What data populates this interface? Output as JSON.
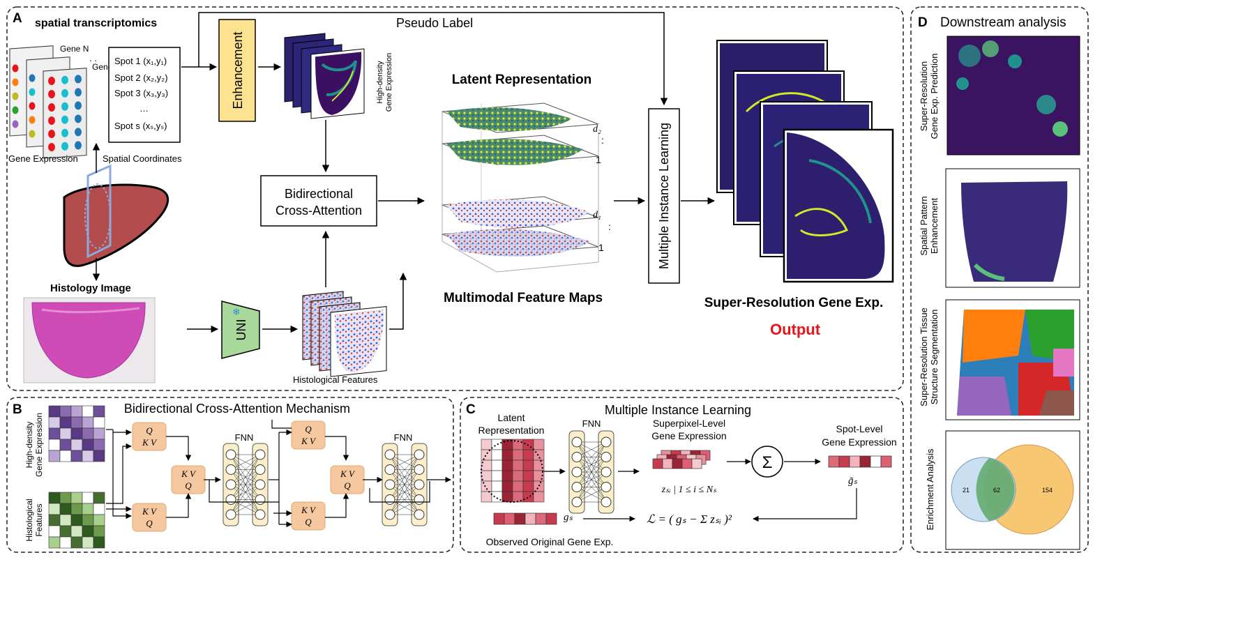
{
  "panelA": {
    "letter": "A",
    "st_title": "spatial transcriptomics",
    "gene_n": "Gene N",
    "gene_1": "Gene 1",
    "dots": ". .",
    "gene_expression": "Gene Expression",
    "spatial_coordinates": "Spatial Coordinates",
    "spots": [
      "Spot 1 (x₁,y₁)",
      "Spot 2 (x₂,y₂)",
      "Spot 3 (x₃,y₃)",
      "…",
      "Spot s (xₛ,yₛ)"
    ],
    "pseudo_label": "Pseudo Label",
    "enhancement": "Enhancement",
    "high_density_1": "High-density",
    "high_density_2": "Gene Expression",
    "bca_line1": "Bidirectional",
    "bca_line2": "Cross-Attention",
    "histology_image": "Histology Image",
    "uni": "UNI",
    "snowflake": "❄",
    "histological_features": "Histological Features",
    "latent_representation": "Latent Representation",
    "multimodal_feature_maps": "Multimodal Feature Maps",
    "d2": "d₂",
    "d1": "d₁",
    "one_a": "1",
    "one_b": "1",
    "vdots_a": ":",
    "vdots_b": ":",
    "mil": "Multiple Instance Learning",
    "sr_gene_exp": "Super-Resolution Gene Exp.",
    "output": "Output"
  },
  "panelB": {
    "letter": "B",
    "title": "Bidirectional Cross-Attention Mechanism",
    "label_hd_1": "High-density",
    "label_hd_2": "Gene Expression",
    "label_hf_1": "Histological",
    "label_hf_2": "Features",
    "q": "Q",
    "k": "K",
    "v": "V",
    "fnn": "FNN"
  },
  "panelC": {
    "letter": "C",
    "title": "Multiple Instance Learning",
    "latent_1": "Latent",
    "latent_2": "Representation",
    "fnn": "FNN",
    "superpixel_1": "Superpixel-Level",
    "superpixel_2": "Gene Expression",
    "spot_1": "Spot-Level",
    "spot_2": "Gene Expression",
    "sigma": "Σ",
    "z_label": "zₛᵢ | 1 ≤ i ≤ Nₛ",
    "g_tilde": "g̃ₛ",
    "g_s": "gₛ",
    "loss": "ℒ = ( gₛ − Σ zₛᵢ )²",
    "observed": "Observed Original Gene Exp."
  },
  "panelD": {
    "letter": "D",
    "title": "Downstream analysis",
    "label1_1": "Super-Resolution",
    "label1_2": "Gene Exp. Prediction",
    "label2_1": "Spatial Pattern",
    "label2_2": "Enhancement",
    "label3_1": "Super-Resolution Tissue",
    "label3_2": "Structure Segmentation",
    "label4": "Enrichment Analysis",
    "venn": {
      "left_only": "21",
      "overlap": "62",
      "right_only": "154"
    }
  },
  "colors": {
    "accent_red": "#e8141c",
    "enhancement_fill": "#fde38f",
    "uni_fill": "#a9d89b",
    "qkv_fill": "#f6c8a0",
    "fnn_fill": "#fbeec8",
    "viridis_dark": "#3b0f62",
    "viridis_bright": "#d4e82a"
  }
}
